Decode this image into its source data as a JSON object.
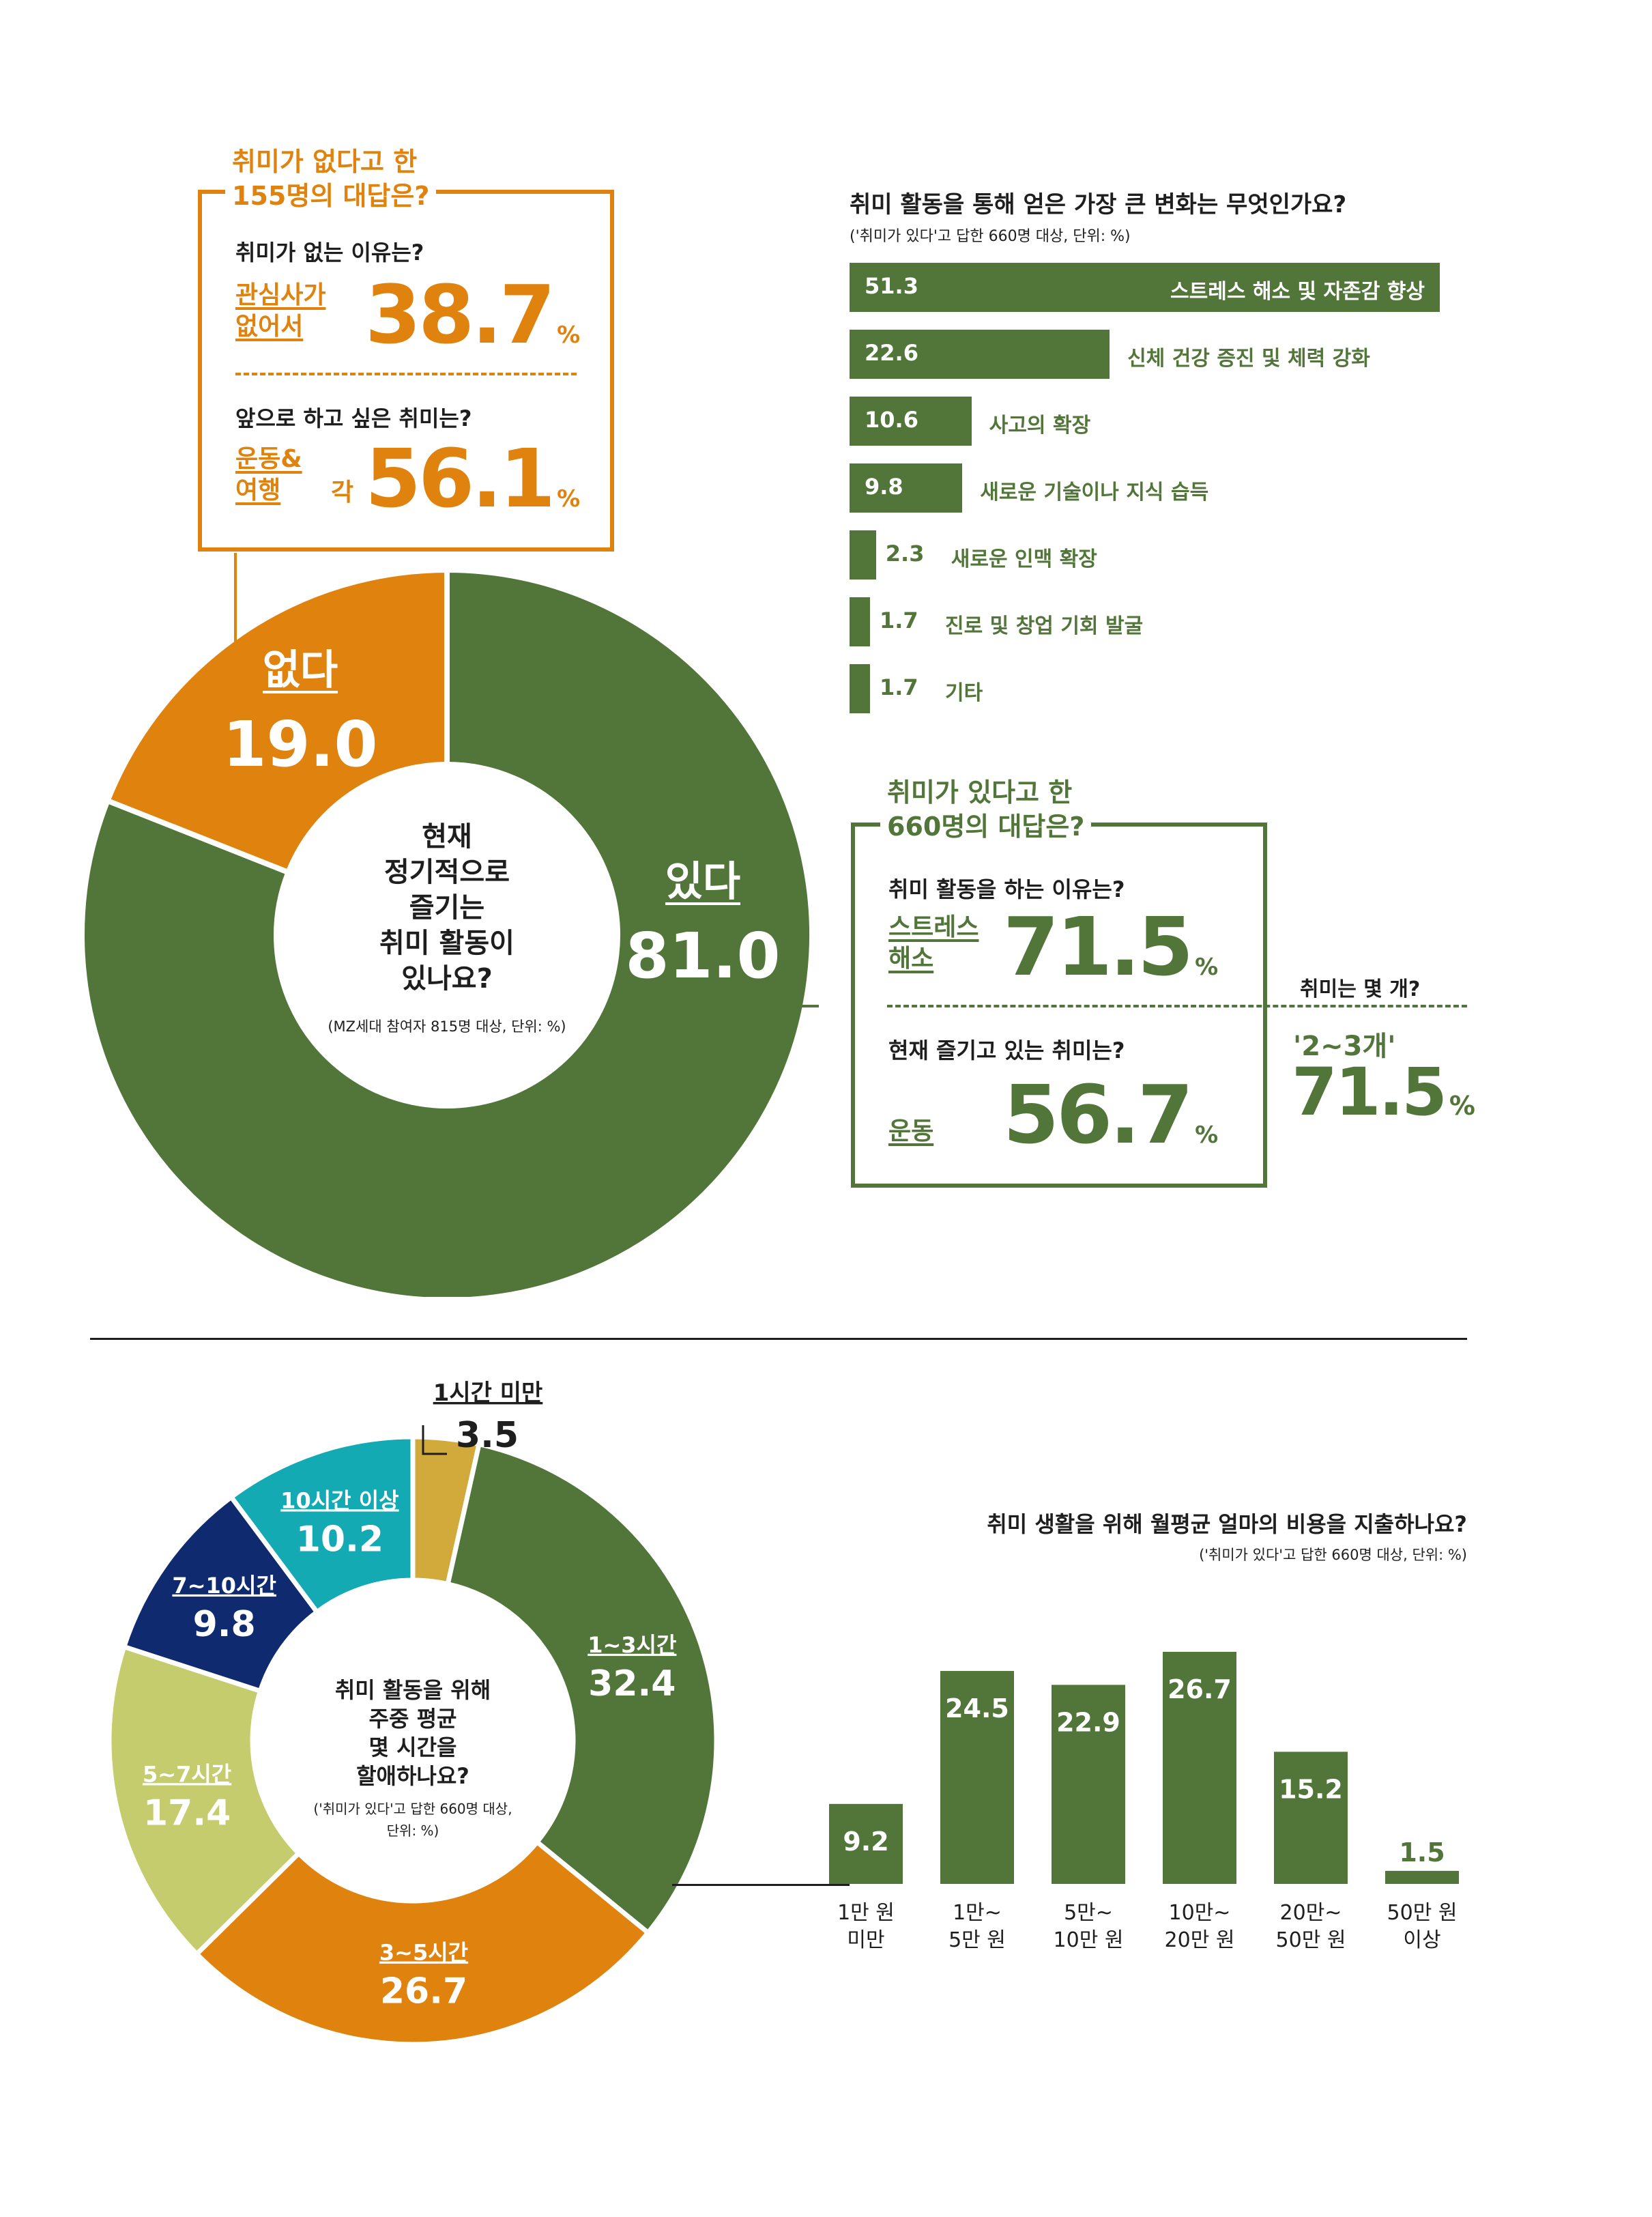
{
  "colors": {
    "green": "#52763a",
    "orange": "#e0820e",
    "gold": "#d2aa3c",
    "teal": "#14aab4",
    "navy": "#0f2a6e",
    "lime": "#c5cc6e"
  },
  "top_donut": {
    "center_question_lines": [
      "현재",
      "정기적으로",
      "즐기는",
      "취미 활동이",
      "있나요?"
    ],
    "center_note": "(MZ세대 참여자 815명 대상, 단위: %)",
    "yes_label": "있다",
    "yes_value": "81.0",
    "no_label": "없다",
    "no_value": "19.0"
  },
  "no_hobby_box": {
    "title_line1": "취미가 없다고 한",
    "title_line2": "155명의 대답은?",
    "q1": "취미가 없는 이유는?",
    "a1_label_line1": "관심사가",
    "a1_label_line2": "없어서",
    "a1_value": "38.7",
    "q2": "앞으로 하고 싶은 취미는?",
    "a2_label_line1": "운동&",
    "a2_label_line2": "여행",
    "a2_each": "각",
    "a2_value": "56.1",
    "percent": "%"
  },
  "change_chart": {
    "title": "취미 활동을 통해 얻은 가장 큰 변화는 무엇인가요?",
    "note": "('취미가 있다'고 답한 660명 대상, 단위: %)"
  },
  "yes_hobby_box": {
    "title_line1": "취미가 있다고 한",
    "title_line2": "660명의 대답은?",
    "q1": "취미 활동을 하는 이유는?",
    "a1_label_line1": "스트레스",
    "a1_label_line2": "해소",
    "a1_value": "71.5",
    "q2": "현재 즐기고 있는 취미는?",
    "a2_label": "운동",
    "a2_value": "56.7",
    "percent": "%"
  },
  "hobby_count": {
    "question": "취미는 몇 개?",
    "answer": "'2~3개'",
    "value": "71.5",
    "percent": "%"
  },
  "hours_donut": {
    "center_question_lines": [
      "취미 활동을 위해",
      "주중 평균",
      "몇 시간을",
      "할애하나요?"
    ],
    "center_note_lines": [
      "('취미가 있다'고 답한 660명 대상,",
      "단위: %)"
    ]
  },
  "spend_chart": {
    "title": "취미 생활을 위해 월평균 얼마의 비용을 지출하나요?",
    "note": "('취미가 있다'고 답한 660명 대상, 단위: %)"
  },
  "chart_data": [
    {
      "type": "pie",
      "categories": [
        "있다",
        "없다"
      ],
      "values": [
        81.0,
        19.0
      ]
    },
    {
      "type": "bar",
      "orientation": "horizontal",
      "title": "취미 활동을 통해 얻은 가장 큰 변화는 무엇인가요?",
      "categories": [
        "스트레스 해소 및 자존감 향상",
        "신체 건강 증진 및 체력 강화",
        "사고의 확장",
        "새로운 기술이나 지식 습득",
        "새로운 인맥 확장",
        "진로 및 창업 기회 발굴",
        "기타"
      ],
      "values": [
        51.3,
        22.6,
        10.6,
        9.8,
        2.3,
        1.7,
        1.7
      ],
      "value_labels": [
        "51.3",
        "22.6",
        "10.6",
        "9.8",
        "2.3",
        "1.7",
        "1.7"
      ]
    },
    {
      "type": "pie",
      "title": "취미 활동을 위해 주중 평균 몇 시간을 할애하나요?",
      "categories": [
        "1시간 미만",
        "1~3시간",
        "3~5시간",
        "5~7시간",
        "7~10시간",
        "10시간 이상"
      ],
      "values": [
        3.5,
        32.4,
        26.7,
        17.4,
        9.8,
        10.2
      ],
      "value_labels": [
        "3.5",
        "32.4",
        "26.7",
        "17.4",
        "9.8",
        "10.2"
      ]
    },
    {
      "type": "bar",
      "title": "취미 생활을 위해 월평균 얼마의 비용을 지출하나요?",
      "categories": [
        [
          "1만 원",
          "미만"
        ],
        [
          "1만~",
          "5만 원"
        ],
        [
          "5만~",
          "10만 원"
        ],
        [
          "10만~",
          "20만 원"
        ],
        [
          "20만~",
          "50만 원"
        ],
        [
          "50만 원",
          "이상"
        ]
      ],
      "values": [
        9.2,
        24.5,
        22.9,
        26.7,
        15.2,
        1.5
      ],
      "value_labels": [
        "9.2",
        "24.5",
        "22.9",
        "26.7",
        "15.2",
        "1.5"
      ]
    }
  ]
}
